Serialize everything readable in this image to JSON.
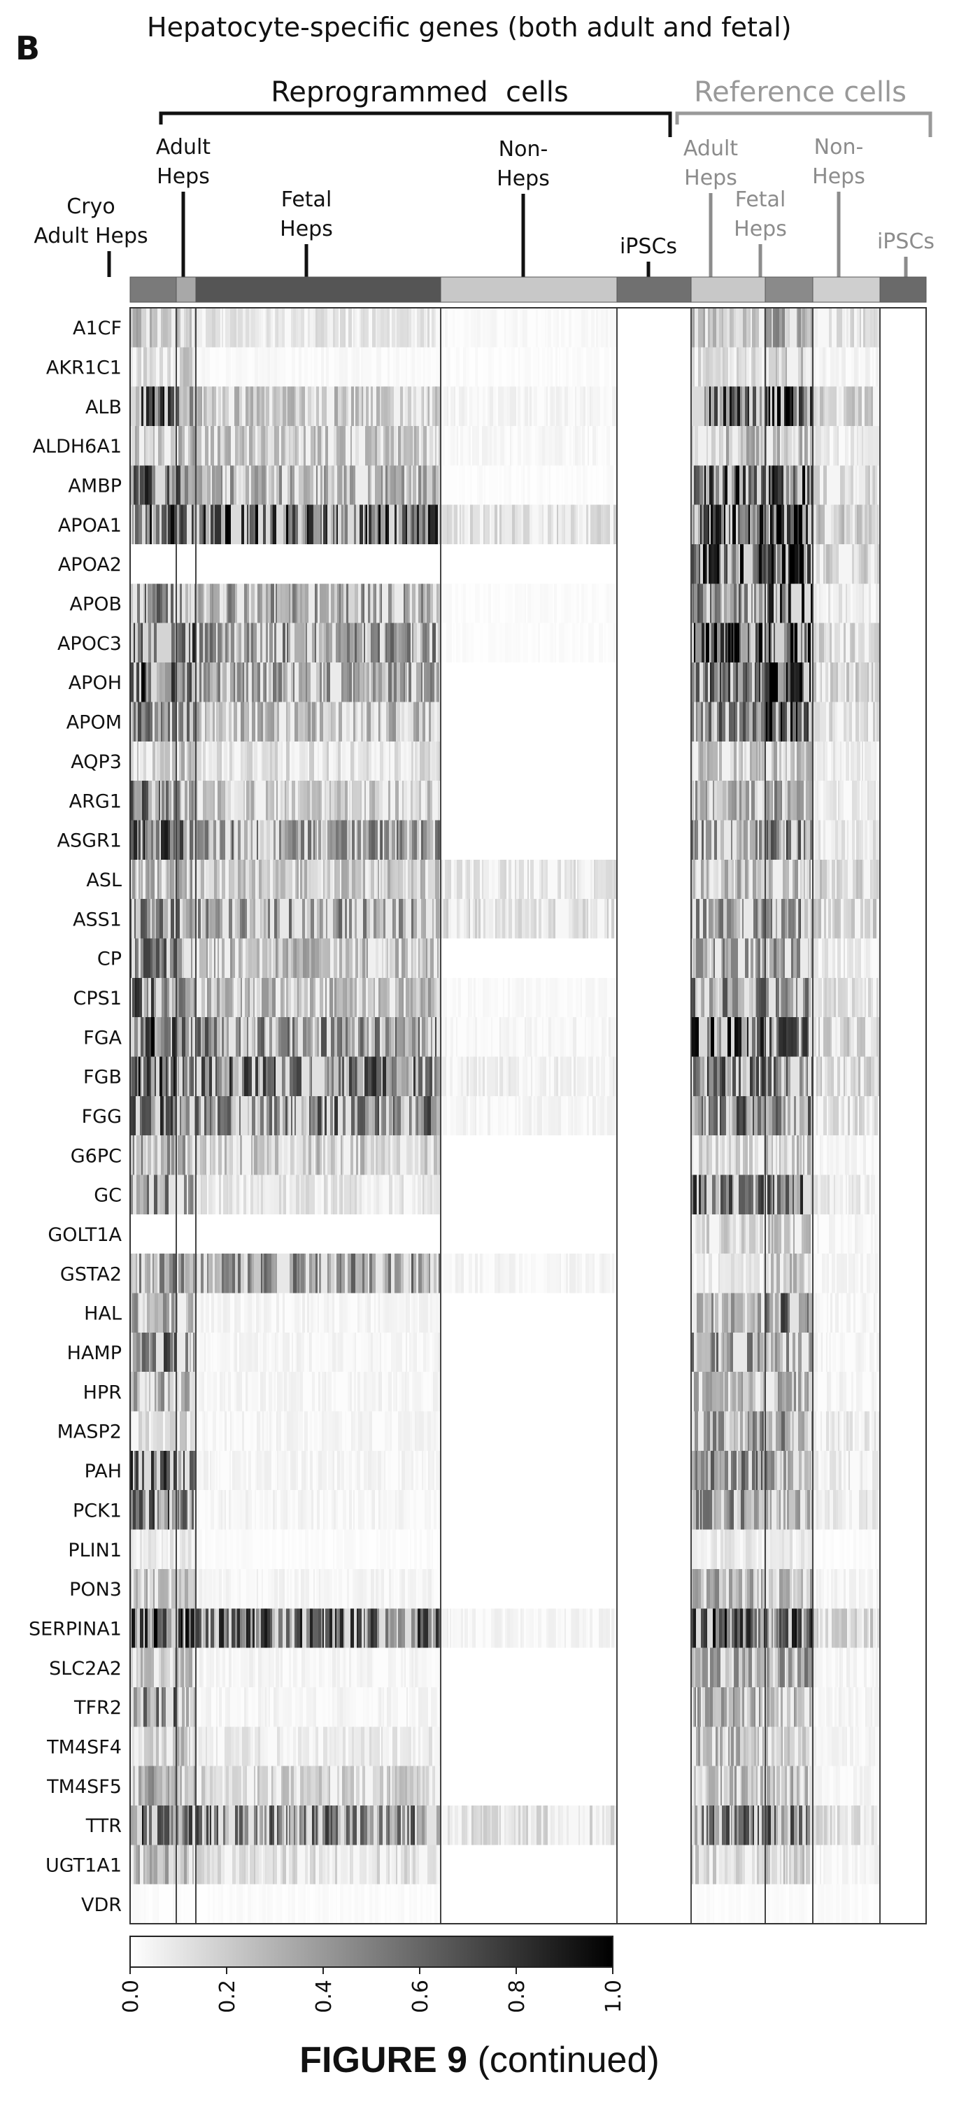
{
  "panel_label": "B",
  "caption": {
    "bold": "FIGURE 9",
    "rest": "(continued)"
  },
  "chart_data": {
    "type": "heatmap",
    "title": "Hepatocyte-specific genes (both adult and fetal)",
    "group_brackets": [
      "Reprogrammed  cells",
      "Reference cells"
    ],
    "groups": [
      {
        "name": "Cryo Adult Heps",
        "label_lines": [
          "Cryo",
          "Adult Heps"
        ],
        "set": "reprogrammed",
        "bar_shade": "#7a7a7a"
      },
      {
        "name": "Adult Heps",
        "label_lines": [
          "Adult",
          "Heps"
        ],
        "set": "reprogrammed",
        "bar_shade": "#a8a8a8"
      },
      {
        "name": "Fetal Heps",
        "label_lines": [
          "Fetal",
          "Heps"
        ],
        "set": "reprogrammed",
        "bar_shade": "#555555"
      },
      {
        "name": "Non-Heps",
        "label_lines": [
          "Non-",
          "Heps"
        ],
        "set": "reprogrammed",
        "bar_shade": "#c8c8c8"
      },
      {
        "name": "iPSCs",
        "label_lines": [
          "iPSCs"
        ],
        "set": "reprogrammed",
        "bar_shade": "#707070"
      },
      {
        "name": "Adult Heps",
        "label_lines": [
          "Adult",
          "Heps"
        ],
        "set": "reference",
        "bar_shade": "#c8c8c8"
      },
      {
        "name": "Fetal Heps",
        "label_lines": [
          "Fetal",
          "Heps"
        ],
        "set": "reference",
        "bar_shade": "#8a8a8a"
      },
      {
        "name": "Non-Heps",
        "label_lines": [
          "Non-",
          "Heps"
        ],
        "set": "reference",
        "bar_shade": "#cfcfcf"
      },
      {
        "name": "iPSCs",
        "label_lines": [
          "iPSCs"
        ],
        "set": "reference",
        "bar_shade": "#6a6a6a"
      }
    ],
    "genes": [
      "A1CF",
      "AKR1C1",
      "ALB",
      "ALDH6A1",
      "AMBP",
      "APOA1",
      "APOA2",
      "APOB",
      "APOC3",
      "APOH",
      "APOM",
      "AQP3",
      "ARG1",
      "ASGR1",
      "ASL",
      "ASS1",
      "CP",
      "CPS1",
      "FGA",
      "FGB",
      "FGG",
      "G6PC",
      "GC",
      "GOLT1A",
      "GSTA2",
      "HAL",
      "HAMP",
      "HPR",
      "MASP2",
      "PAH",
      "PCK1",
      "PLIN1",
      "PON3",
      "SERPINA1",
      "SLC2A2",
      "TFR2",
      "TM4SF4",
      "TM4SF5",
      "TTR",
      "UGT1A1",
      "VDR"
    ],
    "mean_expression": [
      [
        0.3,
        0.3,
        0.12,
        0.03,
        0.0,
        0.25,
        0.4,
        0.15,
        0.0
      ],
      [
        0.15,
        0.2,
        0.03,
        0.02,
        0.0,
        0.15,
        0.25,
        0.05,
        0.0
      ],
      [
        0.75,
        0.55,
        0.25,
        0.05,
        0.0,
        0.7,
        0.9,
        0.2,
        0.0
      ],
      [
        0.25,
        0.3,
        0.25,
        0.04,
        0.0,
        0.3,
        0.3,
        0.1,
        0.0
      ],
      [
        0.7,
        0.6,
        0.35,
        0.02,
        0.0,
        0.7,
        0.85,
        0.2,
        0.0
      ],
      [
        0.7,
        0.6,
        0.7,
        0.15,
        0.0,
        0.7,
        0.85,
        0.25,
        0.0
      ],
      [
        0.0,
        0.0,
        0.0,
        0.0,
        0.0,
        0.8,
        0.9,
        0.2,
        0.0
      ],
      [
        0.5,
        0.5,
        0.4,
        0.02,
        0.0,
        0.5,
        0.7,
        0.1,
        0.0
      ],
      [
        0.85,
        0.7,
        0.45,
        0.02,
        0.0,
        0.8,
        0.9,
        0.2,
        0.0
      ],
      [
        0.7,
        0.55,
        0.4,
        0.0,
        0.0,
        0.6,
        0.85,
        0.2,
        0.0
      ],
      [
        0.5,
        0.45,
        0.3,
        0.0,
        0.0,
        0.55,
        0.85,
        0.15,
        0.0
      ],
      [
        0.2,
        0.25,
        0.15,
        0.0,
        0.0,
        0.25,
        0.3,
        0.1,
        0.0
      ],
      [
        0.55,
        0.4,
        0.25,
        0.0,
        0.0,
        0.35,
        0.4,
        0.1,
        0.0
      ],
      [
        0.65,
        0.55,
        0.45,
        0.0,
        0.0,
        0.45,
        0.55,
        0.15,
        0.0
      ],
      [
        0.3,
        0.35,
        0.25,
        0.12,
        0.0,
        0.3,
        0.3,
        0.2,
        0.0
      ],
      [
        0.55,
        0.5,
        0.45,
        0.15,
        0.0,
        0.45,
        0.5,
        0.2,
        0.0
      ],
      [
        0.55,
        0.45,
        0.3,
        0.0,
        0.0,
        0.4,
        0.4,
        0.1,
        0.0
      ],
      [
        0.6,
        0.55,
        0.3,
        0.03,
        0.0,
        0.5,
        0.55,
        0.15,
        0.0
      ],
      [
        0.75,
        0.65,
        0.5,
        0.05,
        0.0,
        0.75,
        0.6,
        0.2,
        0.0
      ],
      [
        0.7,
        0.65,
        0.6,
        0.08,
        0.0,
        0.6,
        0.55,
        0.2,
        0.0
      ],
      [
        0.65,
        0.6,
        0.55,
        0.05,
        0.0,
        0.55,
        0.5,
        0.15,
        0.0
      ],
      [
        0.4,
        0.35,
        0.25,
        0.0,
        0.0,
        0.2,
        0.25,
        0.05,
        0.0
      ],
      [
        0.55,
        0.4,
        0.12,
        0.0,
        0.0,
        0.6,
        0.6,
        0.1,
        0.0
      ],
      [
        0.0,
        0.0,
        0.0,
        0.0,
        0.0,
        0.2,
        0.25,
        0.05,
        0.0
      ],
      [
        0.45,
        0.45,
        0.45,
        0.05,
        0.0,
        0.1,
        0.25,
        0.05,
        0.0
      ],
      [
        0.35,
        0.3,
        0.05,
        0.0,
        0.0,
        0.35,
        0.55,
        0.05,
        0.0
      ],
      [
        0.55,
        0.4,
        0.05,
        0.0,
        0.0,
        0.45,
        0.4,
        0.05,
        0.0
      ],
      [
        0.35,
        0.3,
        0.05,
        0.0,
        0.0,
        0.3,
        0.35,
        0.05,
        0.0
      ],
      [
        0.15,
        0.2,
        0.05,
        0.0,
        0.0,
        0.45,
        0.45,
        0.1,
        0.0
      ],
      [
        0.7,
        0.55,
        0.05,
        0.0,
        0.0,
        0.5,
        0.45,
        0.1,
        0.0
      ],
      [
        0.6,
        0.5,
        0.05,
        0.0,
        0.0,
        0.45,
        0.4,
        0.1,
        0.0
      ],
      [
        0.1,
        0.1,
        0.02,
        0.0,
        0.0,
        0.1,
        0.1,
        0.02,
        0.0
      ],
      [
        0.3,
        0.25,
        0.05,
        0.0,
        0.0,
        0.35,
        0.3,
        0.05,
        0.0
      ],
      [
        0.8,
        0.7,
        0.65,
        0.05,
        0.0,
        0.7,
        0.75,
        0.2,
        0.0
      ],
      [
        0.25,
        0.3,
        0.05,
        0.0,
        0.0,
        0.4,
        0.4,
        0.05,
        0.0
      ],
      [
        0.55,
        0.35,
        0.05,
        0.0,
        0.0,
        0.35,
        0.3,
        0.05,
        0.0
      ],
      [
        0.25,
        0.25,
        0.1,
        0.0,
        0.0,
        0.3,
        0.25,
        0.05,
        0.0
      ],
      [
        0.35,
        0.3,
        0.2,
        0.0,
        0.0,
        0.3,
        0.3,
        0.05,
        0.0
      ],
      [
        0.7,
        0.6,
        0.55,
        0.15,
        0.0,
        0.55,
        0.6,
        0.15,
        0.0
      ],
      [
        0.3,
        0.3,
        0.15,
        0.0,
        0.0,
        0.2,
        0.25,
        0.05,
        0.0
      ],
      [
        0.02,
        0.02,
        0.02,
        0.0,
        0.0,
        0.02,
        0.02,
        0.02,
        0.0
      ]
    ],
    "colorbar": {
      "range": [
        0.0,
        1.0
      ],
      "ticks": [
        "0.0",
        "0.2",
        "0.4",
        "0.6",
        "0.8",
        "1.0"
      ],
      "colors": [
        "#ffffff",
        "#000000"
      ]
    }
  }
}
